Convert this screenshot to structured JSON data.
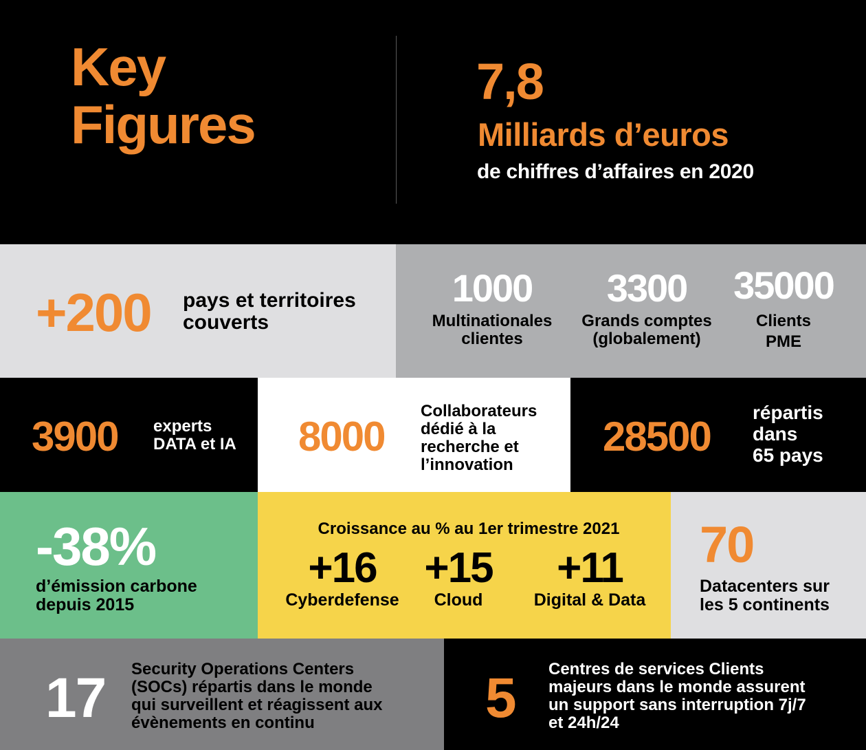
{
  "colors": {
    "orange": "#f08a32",
    "black": "#000000",
    "light_gray": "#dfdfe1",
    "mid_gray": "#aeafb1",
    "dark_gray": "#7f7f81",
    "green": "#6cbf8a",
    "yellow": "#f6d44a",
    "white": "#ffffff"
  },
  "header": {
    "title_line1": "Key",
    "title_line2": "Figures",
    "revenue_value": "7,8",
    "revenue_unit": "Milliards d’euros",
    "revenue_caption": "de chiffres d’affaires en 2020"
  },
  "row1": {
    "countries": {
      "value": "+200",
      "label_line1": "pays et territoires",
      "label_line2": "couverts"
    },
    "clients": [
      {
        "value": "1000",
        "label_line1": "Multinationales",
        "label_line2": "clientes"
      },
      {
        "value": "3300",
        "label_line1": "Grands comptes",
        "label_line2": "(globalement)"
      },
      {
        "value": "35000",
        "label_line1": "Clients",
        "label_line2": "PME"
      }
    ]
  },
  "row2": {
    "experts": {
      "value": "3900",
      "label_line1": "experts",
      "label_line2": "DATA et IA"
    },
    "research": {
      "value": "8000",
      "label_line1": "Collaborateurs",
      "label_line2": "dédié à la",
      "label_line3": "recherche et",
      "label_line4": "l’innovation"
    },
    "staff": {
      "value": "28500",
      "label_line1": "répartis",
      "label_line2": "dans",
      "label_line3": "65 pays"
    }
  },
  "row3": {
    "carbon": {
      "value": "-38%",
      "label_line1": "d’émission carbone",
      "label_line2": "depuis 2015"
    },
    "growth": {
      "heading": "Croissance au % au 1er trimestre 2021",
      "items": [
        {
          "value": "+16",
          "label": "Cyberdefense"
        },
        {
          "value": "+15",
          "label": "Cloud"
        },
        {
          "value": "+11",
          "label": "Digital & Data"
        }
      ]
    },
    "datacenters": {
      "value": "70",
      "label_line1": "Datacenters sur",
      "label_line2": "les 5 continents"
    }
  },
  "row4": {
    "socs": {
      "value": "17",
      "label_line1": "Security Operations Centers",
      "label_line2": "(SOCs) répartis dans le monde",
      "label_line3": "qui surveillent et réagissent aux",
      "label_line4": "évènements en continu"
    },
    "service_centers": {
      "value": "5",
      "label_line1": "Centres de services Clients",
      "label_line2": "majeurs dans le monde assurent",
      "label_line3": "un support sans interruption 7j/7",
      "label_line4": "et 24h/24"
    }
  }
}
